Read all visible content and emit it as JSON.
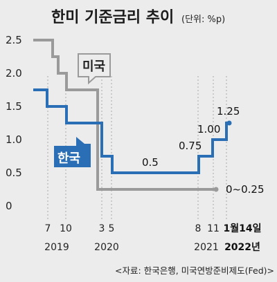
{
  "title": "한미 기준금리 추이",
  "unit": "(단위: %p)",
  "source": "<자료: 한국은행, 미국연방준비제도(Fed)>",
  "chart_data": {
    "type": "line",
    "ylim": [
      0,
      2.5
    ],
    "yticks": [
      "0",
      "0.5",
      "1.0",
      "1.5",
      "2.0",
      "2.5"
    ],
    "x_ticks": [
      {
        "label": "7",
        "bold": false
      },
      {
        "label": "10",
        "bold": false
      },
      {
        "label": "3",
        "bold": false
      },
      {
        "label": "5",
        "bold": false
      },
      {
        "label": "8",
        "bold": false
      },
      {
        "label": "11",
        "bold": false
      },
      {
        "label": "1월14일",
        "bold": true
      }
    ],
    "years": [
      {
        "label": "2019",
        "bold": false
      },
      {
        "label": "2020",
        "bold": false
      },
      {
        "label": "2021",
        "bold": false
      },
      {
        "label": "2022년",
        "bold": true
      }
    ],
    "series": [
      {
        "name": "미국",
        "color": "#9a9a9a",
        "values": [
          2.5,
          2.25,
          2.0,
          1.75,
          0.25,
          0.25,
          0.25,
          0.25
        ],
        "end_label": "0~0.25"
      },
      {
        "name": "한국",
        "color": "#2a6fb5",
        "values": [
          1.75,
          1.5,
          1.25,
          0.75,
          0.5,
          0.75,
          1.0,
          1.25
        ],
        "point_labels": [
          "0.5",
          "0.75",
          "1.00",
          "1.25"
        ]
      }
    ]
  }
}
